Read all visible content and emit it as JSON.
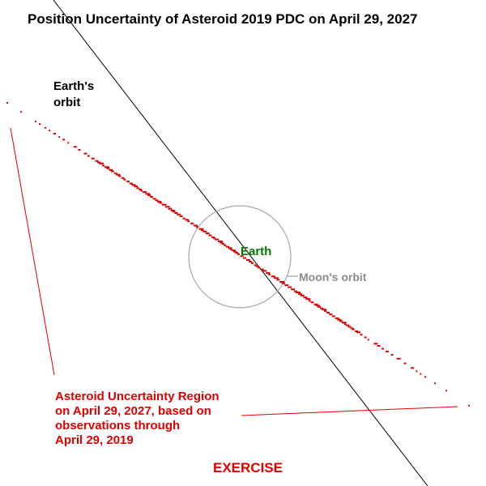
{
  "title": "Position Uncertainty of Asteroid 2019 PDC on April 29, 2027",
  "labels": {
    "earths_orbit": [
      "Earth's",
      "orbit"
    ],
    "earth": "Earth",
    "moons_orbit": "Moon's orbit",
    "uncertainty_region": [
      "Asteroid Uncertainty Region",
      "on April 29, 2027, based on",
      "observations through",
      "April 29, 2019"
    ],
    "exercise": "EXERCISE"
  },
  "colors": {
    "earth_label": "#007a00",
    "uncertainty_region": "#e00000",
    "moon_orbit": "#8c8c8c",
    "earth_orbit": "#000000"
  }
}
